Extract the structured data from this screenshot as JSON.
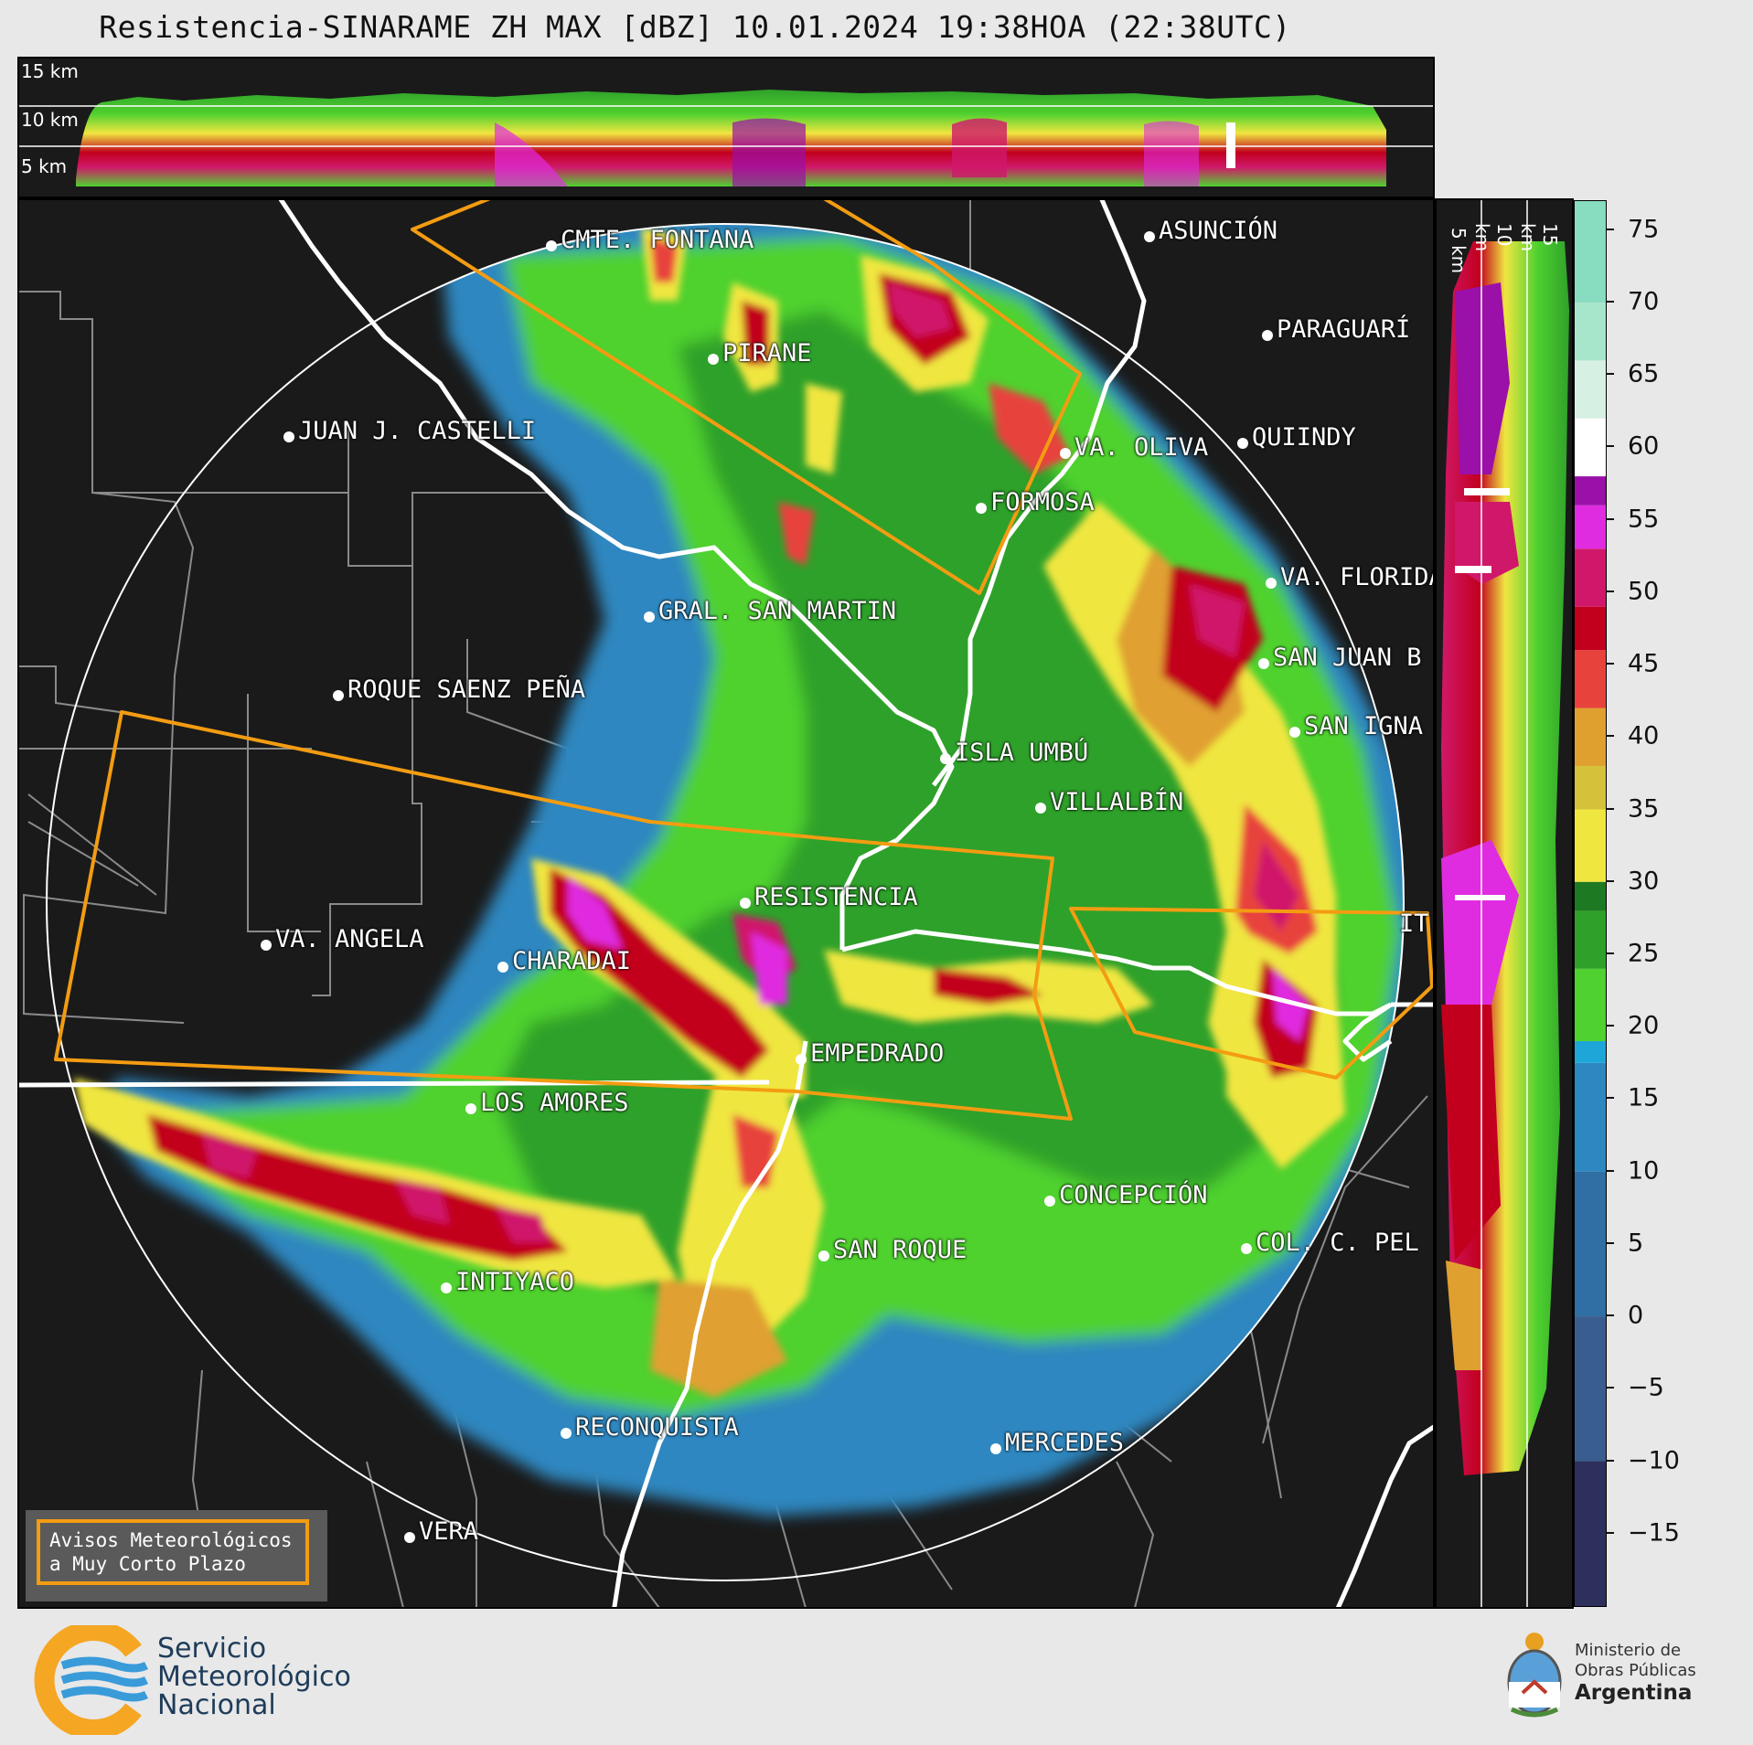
{
  "title": "Resistencia-SINARAME ZH MAX [dBZ] 10.01.2024 19:38HOA (22:38UTC)",
  "top_panel": {
    "height_labels": [
      "15 km",
      "10 km",
      "5 km"
    ]
  },
  "side_panel": {
    "height_labels": [
      "5 km",
      "10 km",
      "15 km"
    ]
  },
  "colorbar": {
    "units": "dBZ",
    "ticks": [
      75,
      70,
      65,
      60,
      55,
      50,
      45,
      40,
      35,
      30,
      25,
      20,
      15,
      10,
      5,
      0,
      -5,
      -10,
      -15
    ],
    "tick_labels": [
      "75",
      "70",
      "65",
      "60",
      "55",
      "50",
      "45",
      "40",
      "35",
      "30",
      "25",
      "20",
      "15",
      "10",
      "5",
      "0",
      "−5",
      "−10",
      "−15"
    ],
    "range": [
      -20,
      77
    ],
    "stops": [
      {
        "from": -20,
        "color": "#2d2f5c"
      },
      {
        "from": -10,
        "color": "#3a5d8f"
      },
      {
        "from": 0,
        "color": "#2f6fa3"
      },
      {
        "from": 10,
        "color": "#2d87c0"
      },
      {
        "from": 17.5,
        "color": "#1ea6d8"
      },
      {
        "from": 19,
        "color": "#4fd12f"
      },
      {
        "from": 24,
        "color": "#2fa12a"
      },
      {
        "from": 28,
        "color": "#1e7a22"
      },
      {
        "from": 30,
        "color": "#f0e640"
      },
      {
        "from": 35,
        "color": "#d6c23a"
      },
      {
        "from": 38,
        "color": "#e0a030"
      },
      {
        "from": 42,
        "color": "#e8423c"
      },
      {
        "from": 46,
        "color": "#c2001e"
      },
      {
        "from": 49,
        "color": "#d0186a"
      },
      {
        "from": 53,
        "color": "#e02ce0"
      },
      {
        "from": 56,
        "color": "#9a10a8"
      },
      {
        "from": 58,
        "color": "#ffffff"
      },
      {
        "from": 62,
        "color": "#d6f0e4"
      },
      {
        "from": 66,
        "color": "#a8e6cc"
      },
      {
        "from": 70,
        "color": "#88dcc0"
      }
    ]
  },
  "cities": [
    {
      "name": "CMTE. FONTANA",
      "key": "cmte-fontana"
    },
    {
      "name": "ASUNCIÓN",
      "key": "asuncion"
    },
    {
      "name": "PARAGUARÍ",
      "key": "paraguari"
    },
    {
      "name": "PIRANE",
      "key": "pirane"
    },
    {
      "name": "JUAN J. CASTELLI",
      "key": "juan-j-castelli"
    },
    {
      "name": "VA. OLIVA",
      "key": "va-oliva"
    },
    {
      "name": "QUIINDY",
      "key": "quiindy"
    },
    {
      "name": "FORMOSA",
      "key": "formosa"
    },
    {
      "name": "VA. FLORIDA",
      "key": "va-florida"
    },
    {
      "name": "GRAL. SAN MARTIN",
      "key": "gral-san-martin"
    },
    {
      "name": "SAN JUAN B",
      "key": "san-juan-b"
    },
    {
      "name": "ROQUE SAENZ PEÑA",
      "key": "roque-saenz-pena"
    },
    {
      "name": "SAN IGNA",
      "key": "san-igna"
    },
    {
      "name": "ISLA UMBÚ",
      "key": "isla-umbu"
    },
    {
      "name": "VILLALBÍN",
      "key": "villalbin"
    },
    {
      "name": "RESISTENCIA",
      "key": "resistencia"
    },
    {
      "name": "VA. ANGELA",
      "key": "va-angela"
    },
    {
      "name": "CHARADAI",
      "key": "charadai"
    },
    {
      "name": "IT",
      "key": "it"
    },
    {
      "name": "EMPEDRADO",
      "key": "empedrado"
    },
    {
      "name": "LOS AMORES",
      "key": "los-amores"
    },
    {
      "name": "CONCEPCIÓN",
      "key": "concepcion"
    },
    {
      "name": "COL. C. PEL",
      "key": "col-c-pel"
    },
    {
      "name": "SAN ROQUE",
      "key": "san-roque"
    },
    {
      "name": "INTIYACO",
      "key": "intiyaco"
    },
    {
      "name": "RECONQUISTA",
      "key": "reconquista"
    },
    {
      "name": "MERCEDES",
      "key": "mercedes"
    },
    {
      "name": "VERA",
      "key": "vera"
    }
  ],
  "legend": {
    "line1": "Avisos Meteorológicos",
    "line2": "a Muy Corto Plazo",
    "border_color": "#f39c12"
  },
  "footer": {
    "smn": [
      "Servicio",
      "Meteorológico",
      "Nacional"
    ],
    "ministry": [
      "Ministerio de",
      "Obras Públicas",
      "Argentina"
    ]
  }
}
